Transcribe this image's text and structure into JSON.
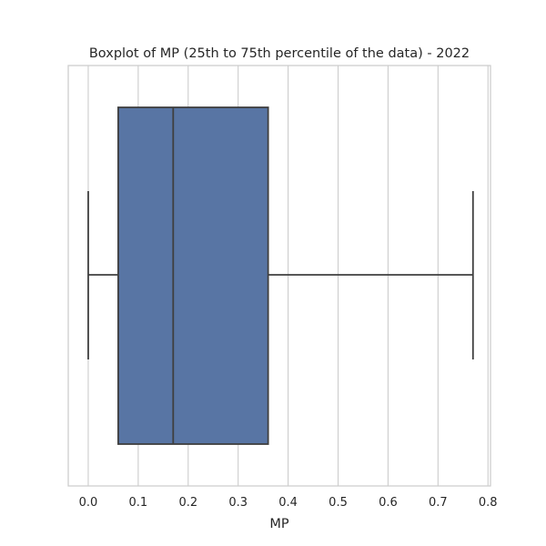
{
  "chart_data": {
    "type": "boxplot",
    "title": "Boxplot of MP (25th to 75th percentile of the data) - 2022",
    "xlabel": "MP",
    "ylabel": "",
    "orientation": "horizontal",
    "xlim": [
      -0.04,
      0.805
    ],
    "ticks": [
      {
        "value": 0.0,
        "label": "0.0"
      },
      {
        "value": 0.1,
        "label": "0.1"
      },
      {
        "value": 0.2,
        "label": "0.2"
      },
      {
        "value": 0.3,
        "label": "0.3"
      },
      {
        "value": 0.4,
        "label": "0.4"
      },
      {
        "value": 0.5,
        "label": "0.5"
      },
      {
        "value": 0.6,
        "label": "0.6"
      },
      {
        "value": 0.7,
        "label": "0.7"
      },
      {
        "value": 0.8,
        "label": "0.8"
      }
    ],
    "box": {
      "whisker_low": 0.0,
      "q1": 0.06,
      "median": 0.17,
      "q3": 0.36,
      "whisker_high": 0.77
    },
    "grid": "vertical",
    "colors": {
      "box_fill": "#5875a4",
      "box_line": "#3f3f3f",
      "grid": "#cccccc",
      "frame": "#cccccc",
      "text": "#262626"
    }
  }
}
